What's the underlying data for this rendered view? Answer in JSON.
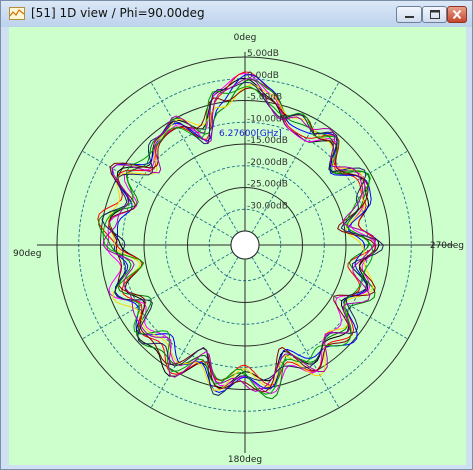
{
  "window": {
    "title": "[51] 1D view / Phi=90.00deg",
    "controls": {
      "minimize": "minimize",
      "maximize": "maximize",
      "close": "close"
    }
  },
  "chart_data": {
    "type": "polar-line",
    "angle_labels": {
      "top": "0deg",
      "left": "90deg",
      "right": "270deg",
      "bottom": "180deg"
    },
    "radial_tick_labels": [
      "5.00dB",
      "0.00dB",
      "-5.00dB",
      "-10.00dB",
      "-15.00dB",
      "-20.00dB",
      "-25.00dB",
      "-30.00dB"
    ],
    "marker_label": "6.27600[GHz]",
    "rmax_db": 5,
    "rmin_db": -35,
    "grid": true,
    "angle_convention": "0deg at top, increasing counter-clockwise (90deg at left)",
    "series_colors": [
      "#000000",
      "#ff00ff",
      "#ff0000",
      "#0000ff",
      "#008000",
      "#ffd200",
      "#800000",
      "#00a000",
      "#202060",
      "#b000b0"
    ],
    "pattern_base": {
      "angles_deg": [
        0,
        10,
        20,
        30,
        40,
        50,
        60,
        70,
        80,
        90,
        100,
        110,
        120,
        130,
        140,
        150,
        160,
        170,
        180,
        190,
        200,
        210,
        220,
        230,
        240,
        250,
        260,
        270,
        280,
        290,
        300,
        310,
        320,
        330,
        340,
        350
      ],
      "gain_db": [
        -1,
        -4,
        -11,
        -6,
        -7,
        -10,
        -5,
        -10,
        -6,
        -8,
        -12,
        -7,
        -11,
        -7,
        -9,
        -6,
        -11,
        -5,
        -8,
        -5,
        -11,
        -6,
        -9,
        -7,
        -12,
        -8,
        -12,
        -9,
        -14,
        -10,
        -8,
        -11,
        -5,
        -8,
        -8,
        -4
      ]
    }
  }
}
